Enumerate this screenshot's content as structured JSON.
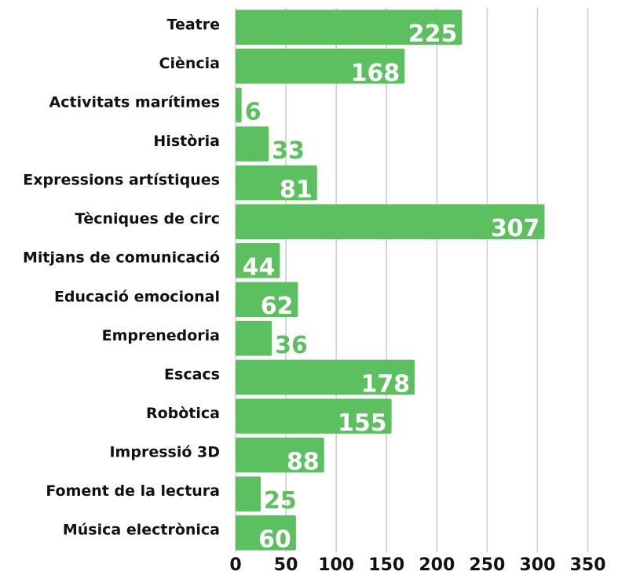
{
  "chart_data": {
    "type": "barh",
    "categories": [
      "Teatre",
      "Ciència",
      "Activitats marítimes",
      "Història",
      "Expressions artístiques",
      "Tècniques de circ",
      "Mitjans de comunicació",
      "Educació emocional",
      "Emprenedoria",
      "Escacs",
      "Robòtica",
      "Impressió 3D",
      "Foment de la lectura",
      "Música electrònica"
    ],
    "values": [
      225,
      168,
      6,
      33,
      81,
      307,
      44,
      62,
      36,
      178,
      155,
      88,
      25,
      60
    ],
    "color": "#5cbf60",
    "xlim": [
      0,
      380
    ],
    "xticks": [
      0,
      50,
      100,
      150,
      200,
      250,
      300,
      350
    ],
    "grid": true
  }
}
